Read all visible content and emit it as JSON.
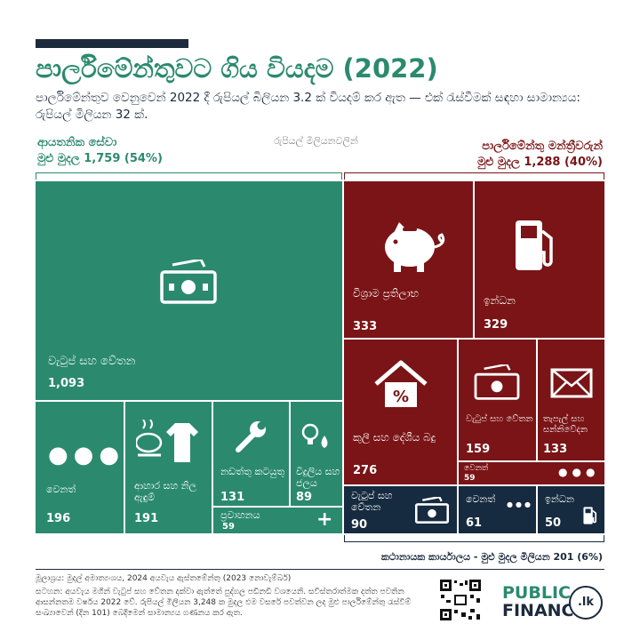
{
  "title": "පාර්ලිමේන්තුවට ගිය වියදම (2022)",
  "subtitle": "පාර්ලිමේන්තුව වෙනුවෙන් 2022 දී රුපියල් බිලියන 3.2 ක් වියදම් කර ඇත — එක් රැස්වීමක් සඳහා සාමාන්‍යය: රුපියල් මිලියන 32 ක්.",
  "unit_note": "රුපියල් මිලියනවලින්",
  "groups": {
    "institutional": {
      "name": "ආයතනික සේවා",
      "total": "මුළු මුදල 1,759 (54%)",
      "color": "#2b8a6e"
    },
    "ministers": {
      "name": "පාර්ලිමේන්තු මන්ත්‍රීවරුන්",
      "total": "මුළු මුදල 1,288 (40%)",
      "color": "#7a1416"
    },
    "executive": {
      "note": "කථානායක කාර්යාලය - මුළු මුදල මිලියන 201 (6%)",
      "color": "#162b40"
    }
  },
  "chart_data": {
    "type": "treemap",
    "unit": "රුපියල් මිලියනවලින්",
    "groups": [
      {
        "name": "ආයතනික සේවා",
        "total": 1759,
        "share_pct": 54,
        "items": [
          {
            "key": "inst_salaries",
            "label": "වැටුප් සහ වේතන",
            "value": 1093,
            "value_text": "1,093"
          },
          {
            "key": "inst_other",
            "label": "වෙනත්",
            "value": 196,
            "value_text": "196"
          },
          {
            "key": "inst_food",
            "label": "ආහාර සහ නිල ඇඳුම්",
            "value": 191,
            "value_text": "191"
          },
          {
            "key": "inst_maint",
            "label": "නඩත්තු කටයුතු",
            "value": 131,
            "value_text": "131"
          },
          {
            "key": "inst_elec",
            "label": "විදුලිය සහ ජලය",
            "value": 89,
            "value_text": "89"
          },
          {
            "key": "inst_transport",
            "label": "ප්‍රවාහනය",
            "value": 59,
            "value_text": "59"
          }
        ]
      },
      {
        "name": "පාර්ලිමේන්තු මන්ත්‍රීවරුන්",
        "total": 1288,
        "share_pct": 40,
        "items": [
          {
            "key": "mp_pension",
            "label": "විශ්‍රාම ප්‍රතිලාභ",
            "value": 333,
            "value_text": "333"
          },
          {
            "key": "mp_fuel",
            "label": "ඉන්ධන",
            "value": 329,
            "value_text": "329"
          },
          {
            "key": "mp_rent",
            "label": "කුලී සහ දේශීය බදු",
            "value": 276,
            "value_text": "276"
          },
          {
            "key": "mp_salaries",
            "label": "වැටුප් සහ වේතන",
            "value": 159,
            "value_text": "159"
          },
          {
            "key": "mp_postal",
            "label": "තැපැල් සහ සන්නිවේදන",
            "value": 133,
            "value_text": "133"
          },
          {
            "key": "mp_other",
            "label": "වෙනත්",
            "value": 59,
            "value_text": "59"
          }
        ]
      },
      {
        "name": "කථානායක කාර්යාලය",
        "total": 201,
        "share_pct": 6,
        "items": [
          {
            "key": "ex_salaries",
            "label": "වැටුප් සහ වේතන",
            "value": 90,
            "value_text": "90"
          },
          {
            "key": "ex_other",
            "label": "වෙනත්",
            "value": 61,
            "value_text": "61"
          },
          {
            "key": "ex_fuel",
            "label": "ඉන්ධන",
            "value": 50,
            "value_text": "50"
          }
        ]
      }
    ]
  },
  "footer": {
    "source": "මූලාශ්‍රය: මුදල් අමාත්‍යංශය, 2024 අයවැය ඇස්තමේන්තු (2023 නොවැම්බර්)",
    "note": "සටහන: අයවැය මගින් වැටුප් සහ වේතන දක්වා ඇත්තේ පුද්ගල පඩිනඩි වශයෙනි. සවිස්තරාත්මක දත්ත පවතින ආසන්නතම වර්ෂය 2022 වේ. රුපියල් මිලියන 3,248 ක මුදල එම වසරේ පවත්වන ලද මුළු පාර්ලිමේන්තු රැස්වීම් සංඛ්‍යාවෙන් (දින 101) බෙදීමෙන් සාමාන්‍යය ගණනය කර ඇත.",
    "brand_line1": "PUBLIC",
    "brand_line2": "FINANCE",
    "brand_badge": ".lk"
  }
}
